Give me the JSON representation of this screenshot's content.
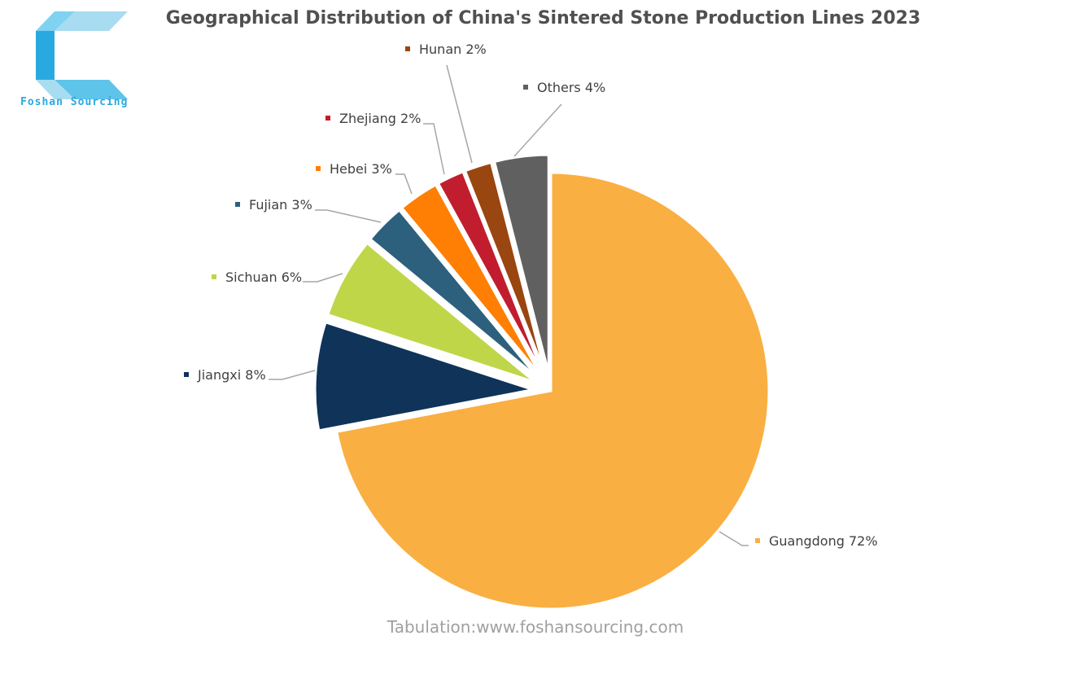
{
  "logo": {
    "text": "Foshan Sourcing"
  },
  "footer": {
    "source": "Tabulation:www.foshansourcing.com"
  },
  "chart_data": {
    "type": "pie",
    "title": "Geographical Distribution of China's Sintered Stone Production Lines 2023",
    "slices": [
      {
        "name": "Guangdong",
        "value": 72,
        "label": "Guangdong 72%",
        "color": "#F9AF41"
      },
      {
        "name": "Jiangxi",
        "value": 8,
        "label": "Jiangxi 8%",
        "color": "#0F3359"
      },
      {
        "name": "Sichuan",
        "value": 6,
        "label": "Sichuan 6%",
        "color": "#BFD649"
      },
      {
        "name": "Fujian",
        "value": 3,
        "label": "Fujian 3%",
        "color": "#2C607D"
      },
      {
        "name": "Hebei",
        "value": 3,
        "label": "Hebei 3%",
        "color": "#FE7F04"
      },
      {
        "name": "Zhejiang",
        "value": 2,
        "label": "Zhejiang 2%",
        "color": "#C11D2E"
      },
      {
        "name": "Hunan",
        "value": 2,
        "label": "Hunan 2%",
        "color": "#9A4610"
      },
      {
        "name": "Others",
        "value": 4,
        "label": "Others 4%",
        "color": "#606060"
      }
    ],
    "legend": "none"
  }
}
